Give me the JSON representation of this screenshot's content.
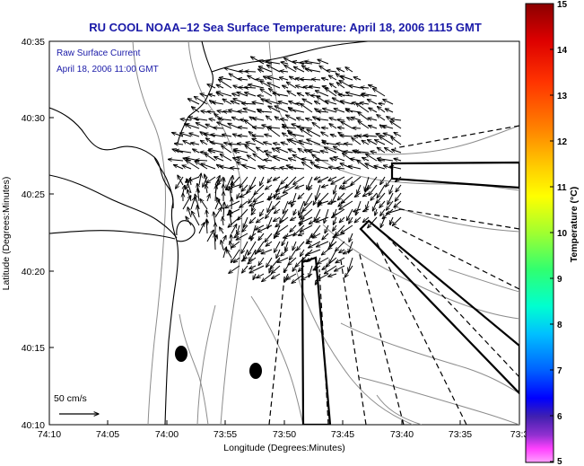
{
  "title": "RU COOL  NOAA–12  Sea Surface Temperature:  April 18, 2006 1115 GMT",
  "legend": {
    "line1": "Raw Surface Current",
    "line2": "April 18, 2006 11:00 GMT",
    "scale_label": "50 cm/s"
  },
  "axes": {
    "xlabel": "Longitude (Degrees:Minutes)",
    "ylabel": "Latitude (Degrees:Minutes)",
    "xticks": [
      "74:10",
      "74:05",
      "74:00",
      "73:55",
      "73:50",
      "73:45",
      "73:40",
      "73:35",
      "73:3"
    ],
    "yticks": [
      "40:35",
      "40:30",
      "40:25",
      "40:20",
      "40:15",
      "40:10"
    ]
  },
  "colorbar": {
    "label": "Temperature (°C)",
    "ticks": [
      "15",
      "14",
      "13",
      "12",
      "11",
      "10",
      "9",
      "8",
      "7",
      "6",
      "5"
    ],
    "colors": [
      "#8b0000",
      "#d40000",
      "#ff2a00",
      "#ff7f00",
      "#ffcc00",
      "#ffff00",
      "#b0ff30",
      "#33ff66",
      "#00ffcc",
      "#00c8ff",
      "#0070ff",
      "#0000ff",
      "#3a18a8",
      "#7a1fc0",
      "#ff33ff",
      "#ff99ff"
    ]
  }
}
